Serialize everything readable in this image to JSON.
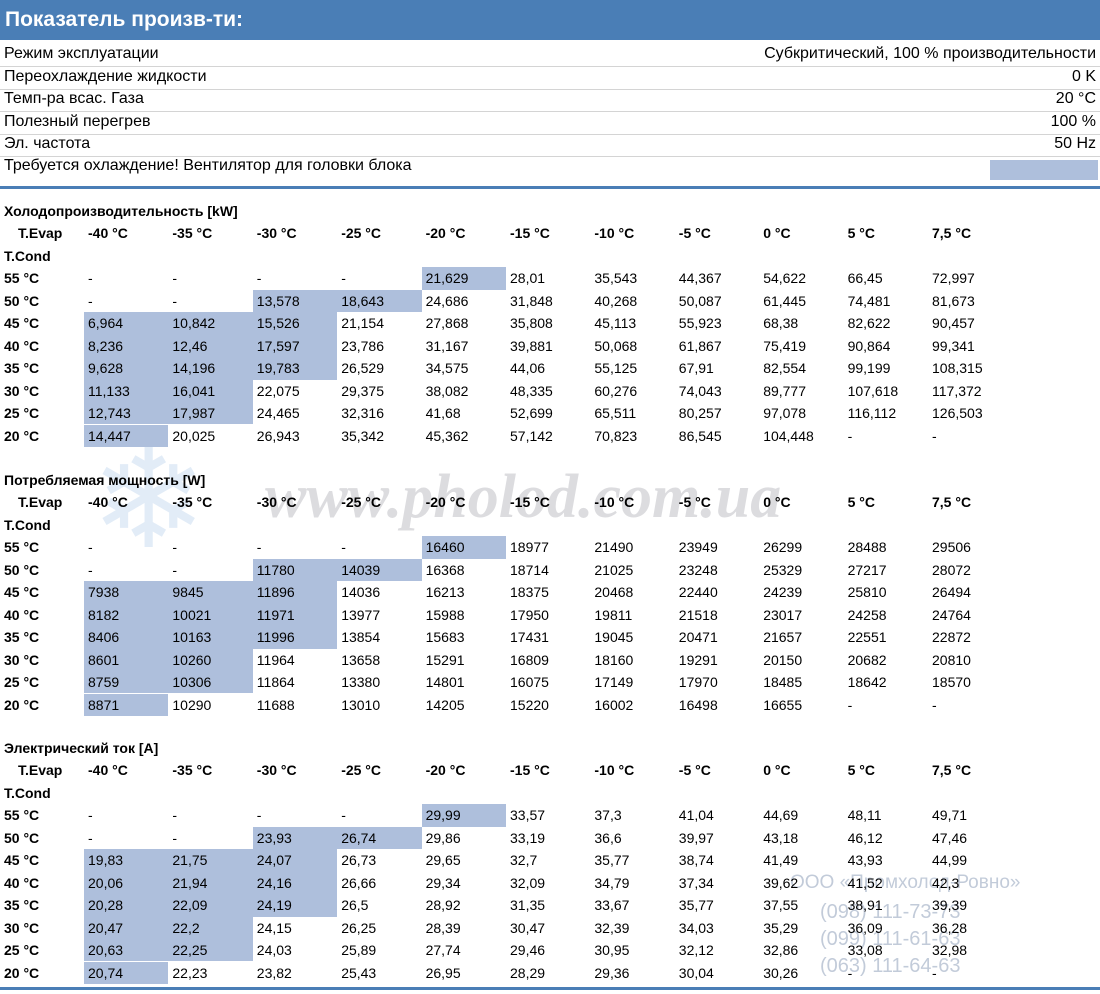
{
  "header": {
    "title": "Показатель произв-ти:"
  },
  "params": [
    {
      "label": "Режим эксплуатации",
      "value": "Субкритический, 100 % производительности"
    },
    {
      "label": "Переохлаждение жидкости",
      "value": "0 K"
    },
    {
      "label": "Темп-ра всас. Газа",
      "value": "20 °C"
    },
    {
      "label": "Полезный перегрев",
      "value": "100 %"
    },
    {
      "label": "Эл. частота",
      "value": "50 Hz"
    }
  ],
  "warning": "Требуется охлаждение! Вентилятор для головки блока",
  "tables": [
    {
      "title": "Холодопроизводительность [kW]",
      "evap_label": "T.Evap",
      "cond_label": "T.Cond",
      "columns": [
        "-40 °C",
        "-35 °C",
        "-30 °C",
        "-25 °C",
        "-20 °C",
        "-15 °C",
        "-10 °C",
        "-5 °C",
        "0 °C",
        "5 °C",
        "7,5 °C"
      ],
      "rows": [
        {
          "cond": "55 °C",
          "cells": [
            "-",
            "-",
            "-",
            "-",
            "21,629",
            "28,01",
            "35,543",
            "44,367",
            "54,622",
            "66,45",
            "72,997"
          ],
          "highlight": [
            4
          ]
        },
        {
          "cond": "50 °C",
          "cells": [
            "-",
            "-",
            "13,578",
            "18,643",
            "24,686",
            "31,848",
            "40,268",
            "50,087",
            "61,445",
            "74,481",
            "81,673"
          ],
          "highlight": [
            2,
            3
          ]
        },
        {
          "cond": "45 °C",
          "cells": [
            "6,964",
            "10,842",
            "15,526",
            "21,154",
            "27,868",
            "35,808",
            "45,113",
            "55,923",
            "68,38",
            "82,622",
            "90,457"
          ],
          "highlight": [
            0,
            1,
            2
          ]
        },
        {
          "cond": "40 °C",
          "cells": [
            "8,236",
            "12,46",
            "17,597",
            "23,786",
            "31,167",
            "39,881",
            "50,068",
            "61,867",
            "75,419",
            "90,864",
            "99,341"
          ],
          "highlight": [
            0,
            1,
            2
          ]
        },
        {
          "cond": "35 °C",
          "cells": [
            "9,628",
            "14,196",
            "19,783",
            "26,529",
            "34,575",
            "44,06",
            "55,125",
            "67,91",
            "82,554",
            "99,199",
            "108,315"
          ],
          "highlight": [
            0,
            1,
            2
          ]
        },
        {
          "cond": "30 °C",
          "cells": [
            "11,133",
            "16,041",
            "22,075",
            "29,375",
            "38,082",
            "48,335",
            "60,276",
            "74,043",
            "89,777",
            "107,618",
            "117,372"
          ],
          "highlight": [
            0,
            1
          ]
        },
        {
          "cond": "25 °C",
          "cells": [
            "12,743",
            "17,987",
            "24,465",
            "32,316",
            "41,68",
            "52,699",
            "65,511",
            "80,257",
            "97,078",
            "116,112",
            "126,503"
          ],
          "highlight": [
            0,
            1
          ]
        },
        {
          "cond": "20 °C",
          "cells": [
            "14,447",
            "20,025",
            "26,943",
            "35,342",
            "45,362",
            "57,142",
            "70,823",
            "86,545",
            "104,448",
            "-",
            "-"
          ],
          "highlight": [
            0
          ]
        }
      ]
    },
    {
      "title": "Потребляемая мощность [W]",
      "evap_label": "T.Evap",
      "cond_label": "T.Cond",
      "columns": [
        "-40 °C",
        "-35 °C",
        "-30 °C",
        "-25 °C",
        "-20 °C",
        "-15 °C",
        "-10 °C",
        "-5 °C",
        "0 °C",
        "5 °C",
        "7,5 °C"
      ],
      "rows": [
        {
          "cond": "55 °C",
          "cells": [
            "-",
            "-",
            "-",
            "-",
            "16460",
            "18977",
            "21490",
            "23949",
            "26299",
            "28488",
            "29506"
          ],
          "highlight": [
            4
          ]
        },
        {
          "cond": "50 °C",
          "cells": [
            "-",
            "-",
            "11780",
            "14039",
            "16368",
            "18714",
            "21025",
            "23248",
            "25329",
            "27217",
            "28072"
          ],
          "highlight": [
            2,
            3
          ]
        },
        {
          "cond": "45 °C",
          "cells": [
            "7938",
            "9845",
            "11896",
            "14036",
            "16213",
            "18375",
            "20468",
            "22440",
            "24239",
            "25810",
            "26494"
          ],
          "highlight": [
            0,
            1,
            2
          ]
        },
        {
          "cond": "40 °C",
          "cells": [
            "8182",
            "10021",
            "11971",
            "13977",
            "15988",
            "17950",
            "19811",
            "21518",
            "23017",
            "24258",
            "24764"
          ],
          "highlight": [
            0,
            1,
            2
          ]
        },
        {
          "cond": "35 °C",
          "cells": [
            "8406",
            "10163",
            "11996",
            "13854",
            "15683",
            "17431",
            "19045",
            "20471",
            "21657",
            "22551",
            "22872"
          ],
          "highlight": [
            0,
            1,
            2
          ]
        },
        {
          "cond": "30 °C",
          "cells": [
            "8601",
            "10260",
            "11964",
            "13658",
            "15291",
            "16809",
            "18160",
            "19291",
            "20150",
            "20682",
            "20810"
          ],
          "highlight": [
            0,
            1
          ]
        },
        {
          "cond": "25 °C",
          "cells": [
            "8759",
            "10306",
            "11864",
            "13380",
            "14801",
            "16075",
            "17149",
            "17970",
            "18485",
            "18642",
            "18570"
          ],
          "highlight": [
            0,
            1
          ]
        },
        {
          "cond": "20 °C",
          "cells": [
            "8871",
            "10290",
            "11688",
            "13010",
            "14205",
            "15220",
            "16002",
            "16498",
            "16655",
            "-",
            "-"
          ],
          "highlight": [
            0
          ]
        }
      ]
    },
    {
      "title": "Электрический ток [A]",
      "evap_label": "T.Evap",
      "cond_label": "T.Cond",
      "columns": [
        "-40 °C",
        "-35 °C",
        "-30 °C",
        "-25 °C",
        "-20 °C",
        "-15 °C",
        "-10 °C",
        "-5 °C",
        "0 °C",
        "5 °C",
        "7,5 °C"
      ],
      "rows": [
        {
          "cond": "55 °C",
          "cells": [
            "-",
            "-",
            "-",
            "-",
            "29,99",
            "33,57",
            "37,3",
            "41,04",
            "44,69",
            "48,11",
            "49,71"
          ],
          "highlight": [
            4
          ]
        },
        {
          "cond": "50 °C",
          "cells": [
            "-",
            "-",
            "23,93",
            "26,74",
            "29,86",
            "33,19",
            "36,6",
            "39,97",
            "43,18",
            "46,12",
            "47,46"
          ],
          "highlight": [
            2,
            3
          ]
        },
        {
          "cond": "45 °C",
          "cells": [
            "19,83",
            "21,75",
            "24,07",
            "26,73",
            "29,65",
            "32,7",
            "35,77",
            "38,74",
            "41,49",
            "43,93",
            "44,99"
          ],
          "highlight": [
            0,
            1,
            2
          ]
        },
        {
          "cond": "40 °C",
          "cells": [
            "20,06",
            "21,94",
            "24,16",
            "26,66",
            "29,34",
            "32,09",
            "34,79",
            "37,34",
            "39,62",
            "41,52",
            "42,3"
          ],
          "highlight": [
            0,
            1,
            2
          ]
        },
        {
          "cond": "35 °C",
          "cells": [
            "20,28",
            "22,09",
            "24,19",
            "26,5",
            "28,92",
            "31,35",
            "33,67",
            "35,77",
            "37,55",
            "38,91",
            "39,39"
          ],
          "highlight": [
            0,
            1,
            2
          ]
        },
        {
          "cond": "30 °C",
          "cells": [
            "20,47",
            "22,2",
            "24,15",
            "26,25",
            "28,39",
            "30,47",
            "32,39",
            "34,03",
            "35,29",
            "36,09",
            "36,28"
          ],
          "highlight": [
            0,
            1
          ]
        },
        {
          "cond": "25 °C",
          "cells": [
            "20,63",
            "22,25",
            "24,03",
            "25,89",
            "27,74",
            "29,46",
            "30,95",
            "32,12",
            "32,86",
            "33,08",
            "32,98"
          ],
          "highlight": [
            0,
            1
          ]
        },
        {
          "cond": "20 °C",
          "cells": [
            "20,74",
            "22,23",
            "23,82",
            "25,43",
            "26,95",
            "28,29",
            "29,36",
            "30,04",
            "30,26",
            "-",
            "-"
          ],
          "highlight": [
            0
          ]
        }
      ]
    }
  ],
  "watermark": {
    "site": "www.pholod.com.ua",
    "company": "ООО «Промхолод-Ровно»",
    "phones": [
      "(098) 111-73-73",
      "(099) 111-61-63",
      "(063) 111-64-63"
    ]
  }
}
